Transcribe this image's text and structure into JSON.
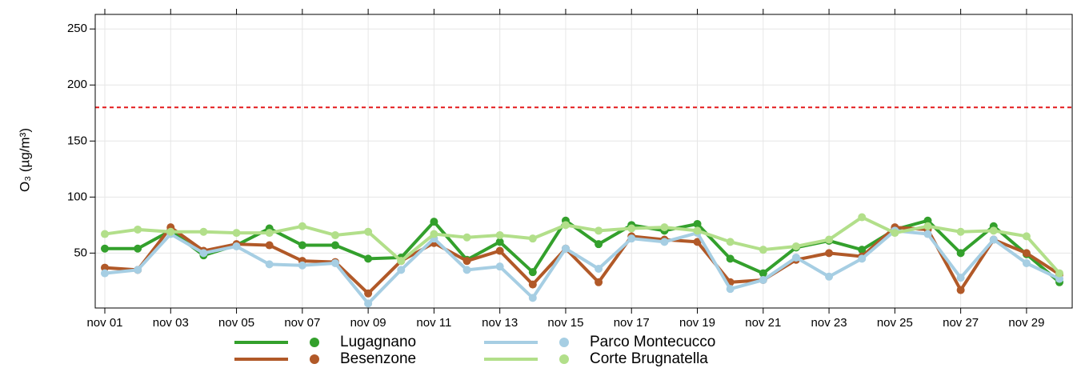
{
  "chart_data": {
    "type": "line",
    "ylabel": "O₃ (µg/m³)",
    "categories": [
      "nov 01",
      null,
      "nov 03",
      null,
      "nov 05",
      null,
      "nov 07",
      null,
      "nov 09",
      null,
      "nov 11",
      null,
      "nov 13",
      null,
      "nov 15",
      null,
      "nov 17",
      null,
      "nov 19",
      null,
      "nov 21",
      null,
      "nov 23",
      null,
      "nov 25",
      null,
      "nov 27",
      null,
      "nov 29",
      null
    ],
    "series": [
      {
        "name": "Lugagnano",
        "color": "#33a02c",
        "values": [
          54,
          54,
          70,
          48,
          57,
          72,
          57,
          57,
          45,
          46,
          78,
          44,
          60,
          33,
          79,
          58,
          75,
          70,
          76,
          45,
          32,
          55,
          61,
          53,
          71,
          79,
          50,
          74,
          49,
          24
        ]
      },
      {
        "name": "Besenzone",
        "color": "#b15928",
        "values": [
          37,
          35,
          73,
          52,
          58,
          57,
          43,
          42,
          14,
          43,
          59,
          43,
          52,
          22,
          54,
          24,
          65,
          62,
          60,
          24,
          26,
          44,
          50,
          47,
          73,
          71,
          17,
          62,
          50,
          31
        ]
      },
      {
        "name": "Parco Montecucco",
        "color": "#a6cee3",
        "values": [
          32,
          35,
          67,
          50,
          56,
          40,
          39,
          41,
          5,
          35,
          63,
          35,
          38,
          10,
          54,
          36,
          63,
          60,
          68,
          18,
          26,
          46,
          29,
          45,
          70,
          67,
          28,
          62,
          41,
          27
        ]
      },
      {
        "name": "Corte Brugnatella",
        "color": "#b2df8a",
        "values": [
          67,
          71,
          69,
          69,
          68,
          68,
          74,
          66,
          69,
          43,
          67,
          64,
          66,
          63,
          75,
          70,
          72,
          73,
          70,
          60,
          53,
          56,
          62,
          82,
          68,
          74,
          69,
          70,
          65,
          32
        ]
      }
    ],
    "reference_line": {
      "value": 180,
      "color": "#e41a1c"
    },
    "ylim": [
      1,
      263
    ],
    "yticks": [
      50,
      100,
      150,
      200,
      250
    ],
    "grid": true
  }
}
